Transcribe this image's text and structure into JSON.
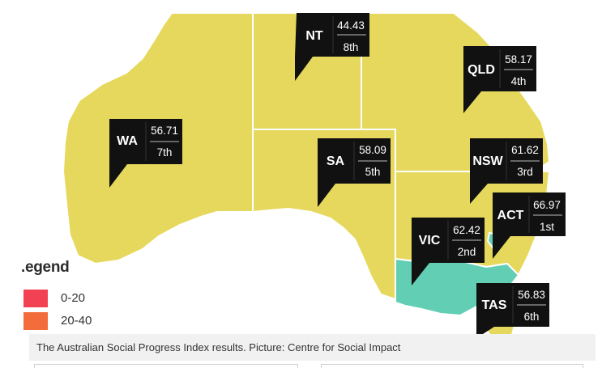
{
  "map": {
    "colors": {
      "yellow": "#e6d85c",
      "teal": "#62cfb4",
      "label_bg": "#111111"
    },
    "states": [
      {
        "id": "wa",
        "abbr": "WA",
        "score": "56.71",
        "rank": "7th",
        "fill": "yellow"
      },
      {
        "id": "nt",
        "abbr": "NT",
        "score": "44.43",
        "rank": "8th",
        "fill": "yellow"
      },
      {
        "id": "sa",
        "abbr": "SA",
        "score": "58.09",
        "rank": "5th",
        "fill": "yellow"
      },
      {
        "id": "qld",
        "abbr": "QLD",
        "score": "58.17",
        "rank": "4th",
        "fill": "yellow"
      },
      {
        "id": "nsw",
        "abbr": "NSW",
        "score": "61.62",
        "rank": "3rd",
        "fill": "yellow"
      },
      {
        "id": "act",
        "abbr": "ACT",
        "score": "66.97",
        "rank": "1st",
        "fill": "teal"
      },
      {
        "id": "vic",
        "abbr": "VIC",
        "score": "62.42",
        "rank": "2nd",
        "fill": "teal"
      },
      {
        "id": "tas",
        "abbr": "TAS",
        "score": "56.83",
        "rank": "6th",
        "fill": "yellow"
      }
    ]
  },
  "legend": {
    "title": ".egend",
    "items": [
      {
        "label": "0-20",
        "color": "#f24153"
      },
      {
        "label": "20-40",
        "color": "#f26c3c"
      }
    ]
  },
  "caption": "The Australian Social Progress Index results. Picture: Centre for Social Impact"
}
